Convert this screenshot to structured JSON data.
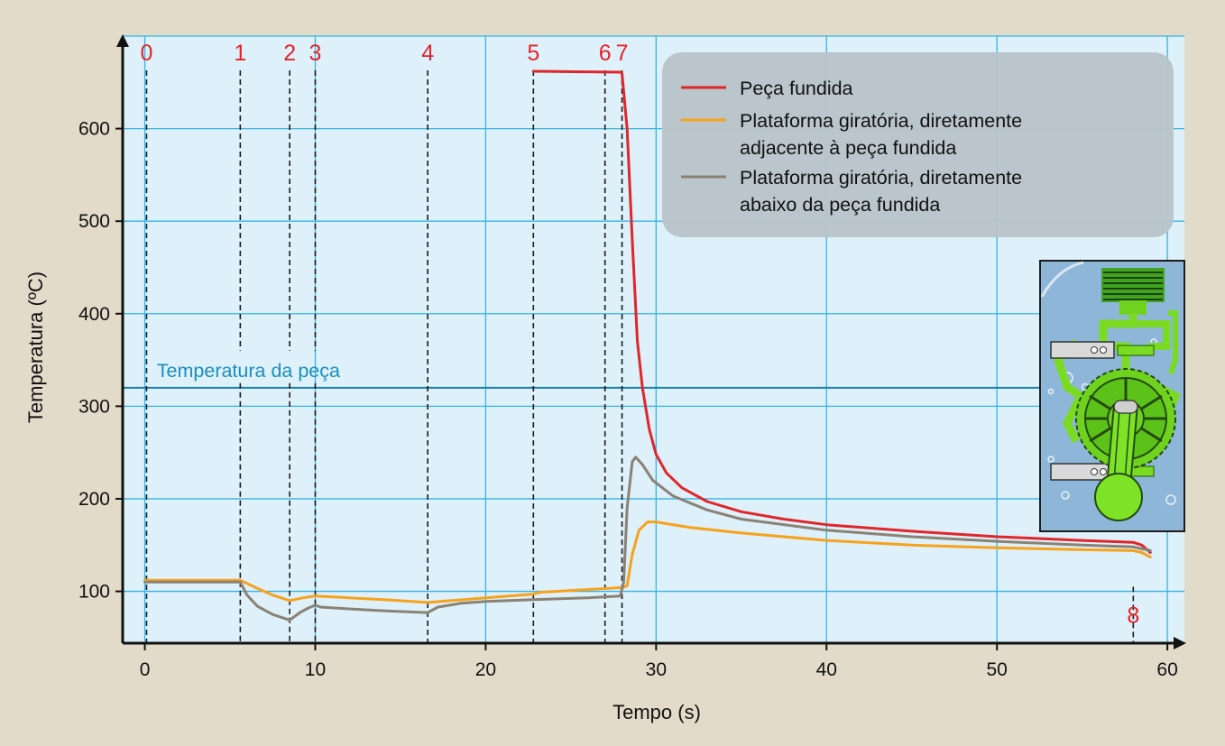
{
  "chart_data": {
    "type": "line",
    "title": "",
    "xlabel": "Tempo (s)",
    "ylabel": "Temperatura (ºC)",
    "xlim": [
      -1.3,
      61
    ],
    "ylim": [
      44,
      700
    ],
    "x_ticks": [
      0,
      10,
      20,
      30,
      40,
      50,
      60
    ],
    "y_ticks": [
      100,
      200,
      300,
      400,
      500,
      600
    ],
    "grid": true,
    "legend_position": "top-right",
    "reference_line": {
      "y": 320,
      "label": "Temperatura da peça",
      "color": "#1a8fc0"
    },
    "events": [
      {
        "label": "0",
        "x": 0.1
      },
      {
        "label": "1",
        "x": 5.6
      },
      {
        "label": "2",
        "x": 8.5
      },
      {
        "label": "3",
        "x": 10.0
      },
      {
        "label": "4",
        "x": 16.6
      },
      {
        "label": "5",
        "x": 22.8
      },
      {
        "label": "6",
        "x": 27.0
      },
      {
        "label": "7",
        "x": 28.0
      },
      {
        "label": "8",
        "x": 58.0
      }
    ],
    "series": [
      {
        "name": "Peça fundida",
        "color": "#e0262a",
        "points": [
          [
            22.8,
            662
          ],
          [
            27.9,
            661
          ],
          [
            28.0,
            660
          ],
          [
            28.3,
            600
          ],
          [
            28.6,
            480
          ],
          [
            28.9,
            370
          ],
          [
            29.2,
            320
          ],
          [
            29.6,
            275
          ],
          [
            30.0,
            248
          ],
          [
            30.6,
            228
          ],
          [
            31.5,
            212
          ],
          [
            33,
            197
          ],
          [
            35,
            186
          ],
          [
            37.5,
            178
          ],
          [
            40,
            172
          ],
          [
            45,
            165
          ],
          [
            50,
            159
          ],
          [
            55,
            155
          ],
          [
            58,
            153
          ],
          [
            58.5,
            150
          ],
          [
            59.0,
            142
          ]
        ]
      },
      {
        "name": "Plataforma giratória, diretamente adjacente à peça fundida",
        "color": "#f7a21b",
        "points": [
          [
            0,
            112
          ],
          [
            5.6,
            112
          ],
          [
            6.5,
            104
          ],
          [
            7.5,
            96
          ],
          [
            8.5,
            90
          ],
          [
            9.3,
            93
          ],
          [
            10.0,
            95
          ],
          [
            12,
            93
          ],
          [
            14,
            91
          ],
          [
            16.6,
            88
          ],
          [
            18,
            90
          ],
          [
            20,
            93
          ],
          [
            22.8,
            97
          ],
          [
            23.2,
            99
          ],
          [
            26,
            102
          ],
          [
            28.0,
            104
          ],
          [
            28.3,
            106
          ],
          [
            28.6,
            140
          ],
          [
            29.0,
            166
          ],
          [
            29.5,
            175
          ],
          [
            30,
            175
          ],
          [
            32,
            169
          ],
          [
            35,
            163
          ],
          [
            40,
            155
          ],
          [
            45,
            150
          ],
          [
            50,
            147
          ],
          [
            55,
            145
          ],
          [
            58,
            144
          ],
          [
            58.5,
            142
          ],
          [
            59.0,
            137
          ]
        ]
      },
      {
        "name": "Plataforma giratória, diretamente abaixo da peça fundida",
        "color": "#8a8275",
        "points": [
          [
            0,
            110
          ],
          [
            5.6,
            110
          ],
          [
            6.0,
            96
          ],
          [
            6.6,
            84
          ],
          [
            7.5,
            75
          ],
          [
            8.5,
            69
          ],
          [
            9.1,
            77
          ],
          [
            9.6,
            82
          ],
          [
            10.0,
            85
          ],
          [
            10.3,
            83
          ],
          [
            12,
            81
          ],
          [
            14,
            79
          ],
          [
            16.6,
            77
          ],
          [
            17.2,
            83
          ],
          [
            18.5,
            87
          ],
          [
            20,
            89
          ],
          [
            22.8,
            91
          ],
          [
            26,
            93
          ],
          [
            27.9,
            95
          ],
          [
            28.1,
            110
          ],
          [
            28.3,
            190
          ],
          [
            28.6,
            240
          ],
          [
            28.8,
            245
          ],
          [
            29.2,
            237
          ],
          [
            29.8,
            220
          ],
          [
            31,
            203
          ],
          [
            33,
            188
          ],
          [
            35,
            178
          ],
          [
            40,
            166
          ],
          [
            45,
            159
          ],
          [
            50,
            154
          ],
          [
            55,
            150
          ],
          [
            58,
            148
          ],
          [
            58.5,
            146
          ],
          [
            59.0,
            144
          ]
        ]
      }
    ]
  }
}
